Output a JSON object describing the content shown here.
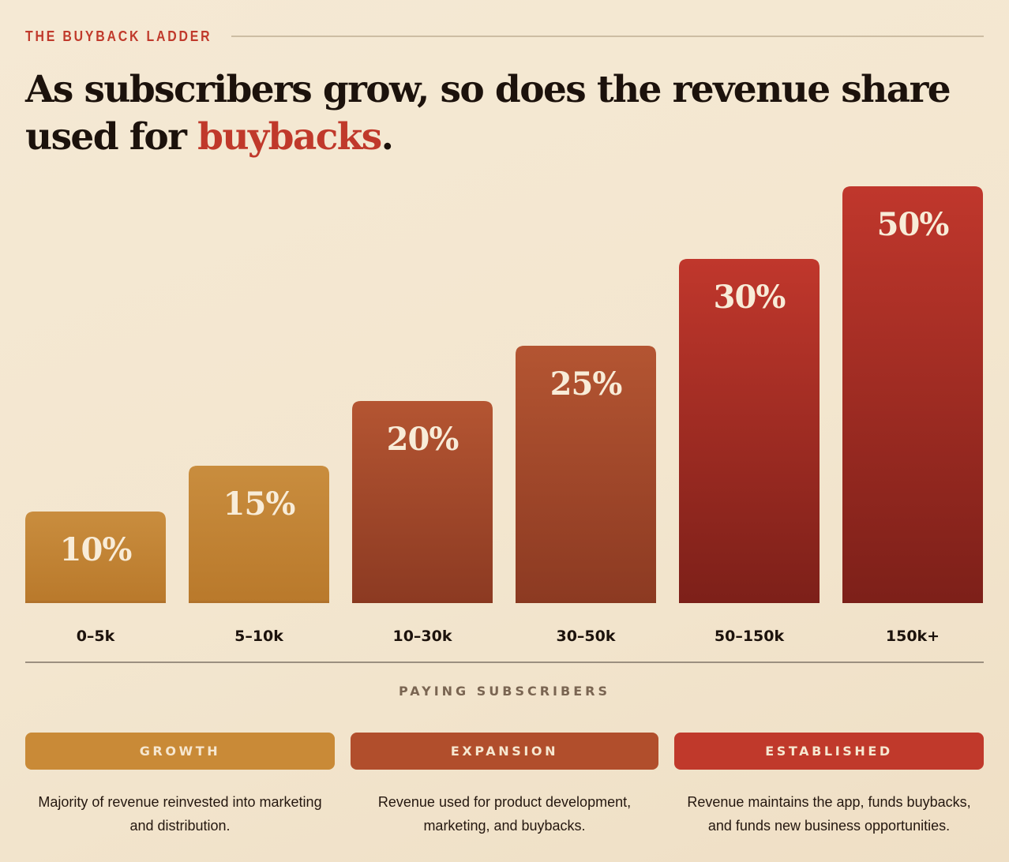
{
  "header": {
    "eyebrow": "THE BUYBACK LADDER",
    "headline_main": "As subscribers grow, so does the revenue share used for ",
    "headline_accent": "buybacks",
    "headline_end": "."
  },
  "colors": {
    "accent": "#c0392b",
    "growth": "#c98a37",
    "expansion": "#b14e2c",
    "established": "#c0392b"
  },
  "chart_data": {
    "type": "bar",
    "title": "As subscribers grow, so does the revenue share used for buybacks.",
    "xlabel": "PAYING SUBSCRIBERS",
    "ylabel": "",
    "categories": [
      "0–5k",
      "5–10k",
      "10–30k",
      "30–50k",
      "50–150k",
      "150k+"
    ],
    "values": [
      10,
      15,
      20,
      25,
      30,
      50
    ],
    "value_labels": [
      "10%",
      "15%",
      "20%",
      "25%",
      "30%",
      "50%"
    ],
    "unit": "%",
    "ylim": [
      0,
      50
    ],
    "grid": false,
    "tiers": [
      "growth",
      "growth",
      "expansion",
      "expansion",
      "established",
      "established"
    ]
  },
  "tiers": [
    {
      "label": "GROWTH",
      "description": "Majority of revenue reinvested into marketing and distribution."
    },
    {
      "label": "EXPANSION",
      "description": "Revenue used for product development, marketing, and buybacks."
    },
    {
      "label": "ESTABLISHED",
      "description": "Revenue maintains the app, funds buybacks, and funds new business opportunities."
    }
  ]
}
